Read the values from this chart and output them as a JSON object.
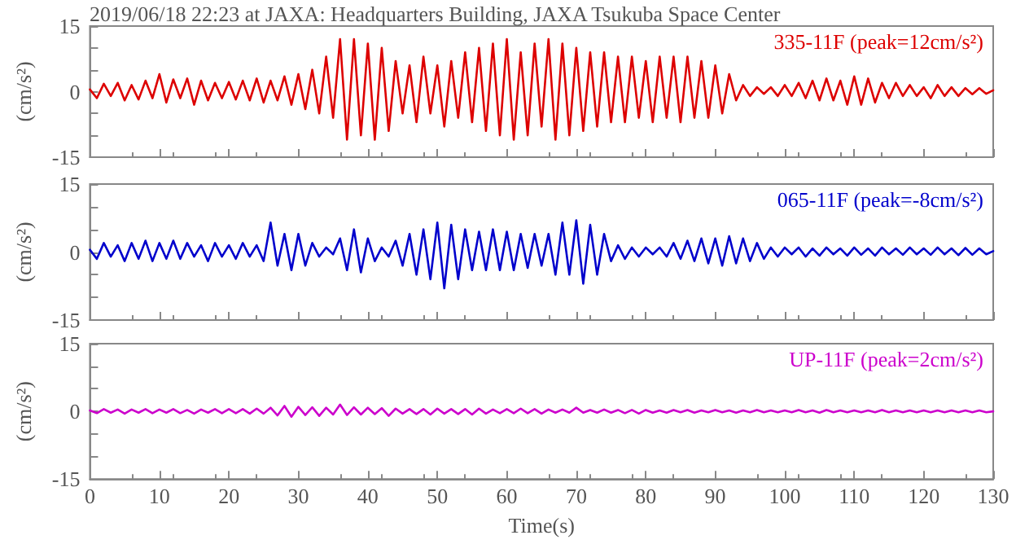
{
  "chart_data": [
    {
      "type": "line",
      "x": [
        0,
        1,
        2,
        3,
        4,
        5,
        6,
        7,
        8,
        9,
        10,
        11,
        12,
        13,
        14,
        15,
        16,
        17,
        18,
        19,
        20,
        21,
        22,
        23,
        24,
        25,
        26,
        27,
        28,
        29,
        30,
        31,
        32,
        33,
        34,
        35,
        36,
        37,
        38,
        39,
        40,
        41,
        42,
        43,
        44,
        45,
        46,
        47,
        48,
        49,
        50,
        51,
        52,
        53,
        54,
        55,
        56,
        57,
        58,
        59,
        60,
        61,
        62,
        63,
        64,
        65,
        66,
        67,
        68,
        69,
        70,
        71,
        72,
        73,
        74,
        75,
        76,
        77,
        78,
        79,
        80,
        81,
        82,
        83,
        84,
        85,
        86,
        87,
        88,
        89,
        90,
        91,
        92,
        93,
        94,
        95,
        96,
        97,
        98,
        99,
        100,
        101,
        102,
        103,
        104,
        105,
        106,
        107,
        108,
        109,
        110,
        111,
        112,
        113,
        114,
        115,
        116,
        117,
        118,
        119,
        120,
        121,
        122,
        123,
        124,
        125,
        126,
        127,
        128,
        129,
        130
      ],
      "title": "2019/06/18 22:23 at JAXA: Headquarters Building, JAXA Tsukuba Space Center",
      "ylabel": "(cm/s²)",
      "xlim": [
        0,
        130
      ],
      "xticks": [
        0,
        10,
        20,
        30,
        40,
        50,
        60,
        70,
        80,
        90,
        100,
        110,
        120,
        130
      ],
      "ylim": [
        -15,
        15
      ],
      "yticks": [
        -15,
        {
          "value": -10,
          "label": null
        },
        {
          "value": -5,
          "label": null
        },
        0,
        {
          "value": 5,
          "label": null
        },
        {
          "value": 10,
          "label": null
        },
        15
      ],
      "tick_labels": "y",
      "grid": false,
      "legend": "top right",
      "marker": "none",
      "line_style": "solid",
      "series": [
        {
          "name": "335-11F (peak=12cm/s²)",
          "color": "#dd0000",
          "values": [
            0.5,
            -1.5,
            1.8,
            -1,
            2,
            -2,
            1.5,
            -1.8,
            2.5,
            -1.5,
            4,
            -2.5,
            2.8,
            -1.5,
            3,
            -3,
            2.5,
            -2,
            2,
            -1.5,
            2.2,
            -1.8,
            2.5,
            -2,
            3,
            -2.5,
            2.5,
            -2,
            3.5,
            -3,
            4,
            -4,
            5,
            -5,
            8,
            -6,
            12,
            -11,
            12,
            -10,
            11,
            -11,
            10,
            -9,
            7,
            -5,
            6,
            -7,
            8,
            -5,
            6,
            -8,
            7,
            -6,
            9,
            -7,
            10,
            -9,
            11,
            -10,
            12,
            -11,
            9,
            -10,
            11,
            -8,
            12,
            -11,
            11,
            -10,
            10,
            -9,
            9,
            -8,
            9,
            -7,
            8,
            -7,
            8,
            -6,
            7,
            -7,
            8,
            -6,
            8,
            -7,
            8,
            -6,
            7,
            -6,
            6,
            -5,
            4,
            -2,
            1.5,
            -1,
            1,
            -0.5,
            1,
            -1,
            1.5,
            -1,
            2,
            -1.5,
            2.5,
            -2,
            3,
            -2,
            2.5,
            -3,
            3.5,
            -3,
            3,
            -2.5,
            2,
            -1.5,
            2,
            -1,
            1.5,
            -1,
            1,
            -1.5,
            1.5,
            -1,
            1,
            -1,
            0.8,
            -0.6,
            0.8,
            -0.5,
            0.3
          ]
        }
      ]
    },
    {
      "type": "line",
      "x": [
        0,
        1,
        2,
        3,
        4,
        5,
        6,
        7,
        8,
        9,
        10,
        11,
        12,
        13,
        14,
        15,
        16,
        17,
        18,
        19,
        20,
        21,
        22,
        23,
        24,
        25,
        26,
        27,
        28,
        29,
        30,
        31,
        32,
        33,
        34,
        35,
        36,
        37,
        38,
        39,
        40,
        41,
        42,
        43,
        44,
        45,
        46,
        47,
        48,
        49,
        50,
        51,
        52,
        53,
        54,
        55,
        56,
        57,
        58,
        59,
        60,
        61,
        62,
        63,
        64,
        65,
        66,
        67,
        68,
        69,
        70,
        71,
        72,
        73,
        74,
        75,
        76,
        77,
        78,
        79,
        80,
        81,
        82,
        83,
        84,
        85,
        86,
        87,
        88,
        89,
        90,
        91,
        92,
        93,
        94,
        95,
        96,
        97,
        98,
        99,
        100,
        101,
        102,
        103,
        104,
        105,
        106,
        107,
        108,
        109,
        110,
        111,
        112,
        113,
        114,
        115,
        116,
        117,
        118,
        119,
        120,
        121,
        122,
        123,
        124,
        125,
        126,
        127,
        128,
        129,
        130
      ],
      "ylabel": "(cm/s²)",
      "xlim": [
        0,
        130
      ],
      "xticks": [
        0,
        10,
        20,
        30,
        40,
        50,
        60,
        70,
        80,
        90,
        100,
        110,
        120,
        130
      ],
      "ylim": [
        -15,
        15
      ],
      "yticks": [
        -15,
        {
          "value": -10,
          "label": null
        },
        {
          "value": -5,
          "label": null
        },
        0,
        {
          "value": 5,
          "label": null
        },
        {
          "value": 10,
          "label": null
        },
        15
      ],
      "tick_labels": "y",
      "grid": false,
      "legend": "top right",
      "marker": "none",
      "line_style": "solid",
      "series": [
        {
          "name": "065-11F (peak=-8cm/s²)",
          "color": "#0000cc",
          "values": [
            0.5,
            -1.5,
            2,
            -1,
            1.5,
            -2,
            2,
            -1.5,
            2.5,
            -2,
            2,
            -1.5,
            2.5,
            -1.5,
            2,
            -1,
            1.5,
            -2,
            2,
            -1,
            1.5,
            -1.5,
            2,
            -1,
            1.5,
            -2,
            6.5,
            -3,
            4,
            -4,
            4,
            -3,
            2,
            -1,
            1,
            -0.5,
            3,
            -4,
            5,
            -4.5,
            3,
            -2,
            1,
            -1,
            2.5,
            -3,
            4,
            -5,
            5,
            -6,
            6.5,
            -8,
            6,
            -6,
            5,
            -4,
            4.5,
            -4,
            5,
            -4,
            4.5,
            -4,
            4,
            -3.5,
            4,
            -3,
            4,
            -5,
            6.5,
            -5,
            7,
            -7,
            6,
            -5,
            4,
            -2,
            1.5,
            -1.5,
            1,
            -1,
            1,
            -0.5,
            1,
            -1,
            2,
            -1.5,
            2.5,
            -2,
            3,
            -2.5,
            3,
            -3,
            3.5,
            -2.5,
            3,
            -2,
            2,
            -1.5,
            1,
            -1,
            1,
            -0.5,
            1,
            -1,
            0.8,
            -0.8,
            1,
            -0.5,
            0.8,
            -0.8,
            1,
            -0.6,
            0.8,
            -0.8,
            1,
            -0.5,
            0.8,
            -0.6,
            1,
            -0.5,
            0.8,
            -0.6,
            1,
            -0.5,
            0.8,
            -0.7,
            0.9,
            -0.6,
            0.8,
            -0.5,
            0.2
          ]
        }
      ]
    },
    {
      "type": "line",
      "x": [
        0,
        1,
        2,
        3,
        4,
        5,
        6,
        7,
        8,
        9,
        10,
        11,
        12,
        13,
        14,
        15,
        16,
        17,
        18,
        19,
        20,
        21,
        22,
        23,
        24,
        25,
        26,
        27,
        28,
        29,
        30,
        31,
        32,
        33,
        34,
        35,
        36,
        37,
        38,
        39,
        40,
        41,
        42,
        43,
        44,
        45,
        46,
        47,
        48,
        49,
        50,
        51,
        52,
        53,
        54,
        55,
        56,
        57,
        58,
        59,
        60,
        61,
        62,
        63,
        64,
        65,
        66,
        67,
        68,
        69,
        70,
        71,
        72,
        73,
        74,
        75,
        76,
        77,
        78,
        79,
        80,
        81,
        82,
        83,
        84,
        85,
        86,
        87,
        88,
        89,
        90,
        91,
        92,
        93,
        94,
        95,
        96,
        97,
        98,
        99,
        100,
        101,
        102,
        103,
        104,
        105,
        106,
        107,
        108,
        109,
        110,
        111,
        112,
        113,
        114,
        115,
        116,
        117,
        118,
        119,
        120,
        121,
        122,
        123,
        124,
        125,
        126,
        127,
        128,
        129,
        130
      ],
      "xlabel": "Time(s)",
      "ylabel": "(cm/s²)",
      "xlim": [
        0,
        130
      ],
      "xticks": [
        0,
        10,
        20,
        30,
        40,
        50,
        60,
        70,
        80,
        90,
        100,
        110,
        120,
        130
      ],
      "ylim": [
        -15,
        15
      ],
      "yticks": [
        -15,
        {
          "value": -10,
          "label": null
        },
        {
          "value": -5,
          "label": null
        },
        0,
        {
          "value": 5,
          "label": null
        },
        {
          "value": 10,
          "label": null
        },
        15
      ],
      "grid": false,
      "legend": "top right",
      "marker": "none",
      "line_style": "solid",
      "series": [
        {
          "name": "UP-11F (peak=2cm/s²)",
          "color": "#cc00cc",
          "values": [
            0.2,
            -0.4,
            0.5,
            -0.3,
            0.4,
            -0.5,
            0.4,
            -0.3,
            0.5,
            -0.4,
            0.4,
            -0.3,
            0.5,
            -0.4,
            0.3,
            -0.5,
            0.4,
            -0.3,
            0.5,
            -0.4,
            0.5,
            -0.4,
            0.5,
            -0.5,
            0.6,
            -0.5,
            0.8,
            -0.9,
            1.2,
            -1.2,
            1,
            -0.8,
            0.9,
            -1,
            0.8,
            -0.7,
            1.5,
            -0.8,
            0.9,
            -0.7,
            0.8,
            -0.6,
            0.7,
            -1,
            0.6,
            -0.5,
            0.5,
            -0.6,
            0.5,
            -0.7,
            0.6,
            -0.5,
            0.5,
            -0.6,
            0.5,
            -0.7,
            0.6,
            -0.5,
            0.4,
            -0.4,
            0.5,
            -0.4,
            0.6,
            -0.4,
            0.5,
            -0.5,
            0.4,
            -0.3,
            0.4,
            -0.3,
            0.8,
            -0.3,
            0.3,
            -0.3,
            0.4,
            -0.3,
            0.3,
            -0.4,
            0.3,
            -0.5,
            0.3,
            -0.3,
            0.2,
            -0.3,
            0.3,
            -0.2,
            0.3,
            -0.3,
            0.2,
            -0.2,
            0.3,
            -0.2,
            0.2,
            -0.3,
            0.2,
            -0.2,
            0.3,
            -0.2,
            0.2,
            -0.2,
            0.2,
            -0.2,
            0.3,
            -0.2,
            0.2,
            -0.3,
            0.3,
            -0.2,
            0.2,
            -0.2,
            0.2,
            -0.2,
            0.2,
            -0.2,
            0.3,
            -0.2,
            0.2,
            -0.2,
            0.2,
            -0.2,
            0.2,
            -0.2,
            0.2,
            -0.2,
            0.2,
            -0.2,
            0.2,
            -0.2,
            0.2,
            -0.2,
            0
          ]
        }
      ]
    }
  ]
}
